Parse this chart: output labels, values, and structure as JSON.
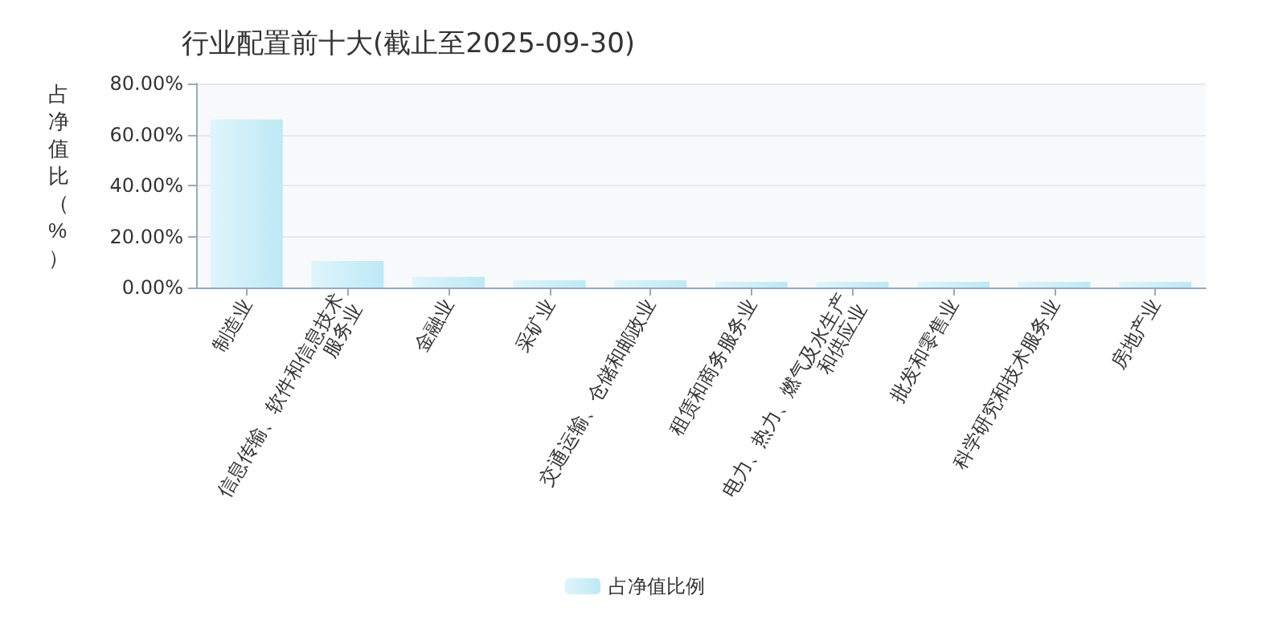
{
  "chart_data": {
    "type": "bar",
    "title": "行业配置前十大(截止至2025-09-30)",
    "ylabel": "占净值比（%）",
    "categories": [
      "制造业",
      "信息传输、软件和信息技术服务业",
      "金融业",
      "采矿业",
      "交通运输、仓储和邮政业",
      "租赁和商务服务业",
      "电力、热力、燃气及水生产和供应业",
      "批发和零售业",
      "科学研究和技术服务业",
      "房地产业"
    ],
    "series": [
      {
        "name": "占净值比例",
        "color": "#bde9f6",
        "values": [
          65.9,
          10.4,
          4.2,
          2.8,
          2.8,
          2.2,
          2.2,
          2.2,
          2.2,
          2.2
        ]
      }
    ],
    "ylim": [
      0,
      80
    ],
    "yticks": [
      {
        "value": 0,
        "label": "0.00%"
      },
      {
        "value": 20,
        "label": "20.00%"
      },
      {
        "value": 40,
        "label": "40.00%"
      },
      {
        "value": 60,
        "label": "60.00%"
      },
      {
        "value": 80,
        "label": "80.00%"
      }
    ],
    "grid": "y",
    "legend": "bottom"
  }
}
